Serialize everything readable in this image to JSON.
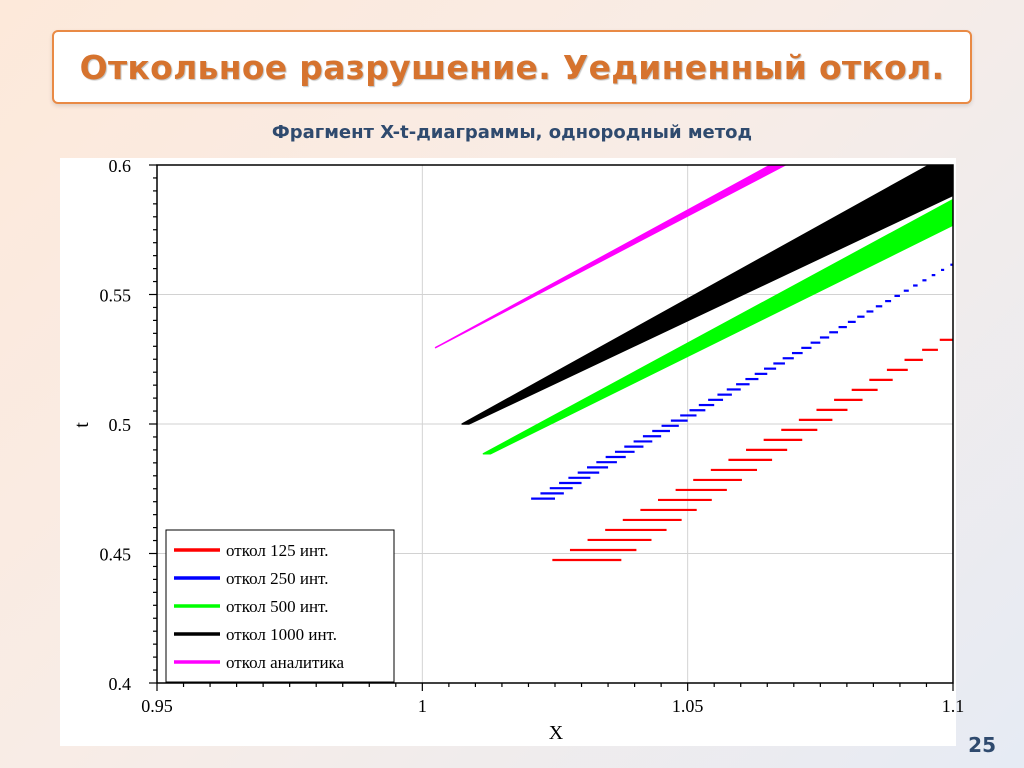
{
  "slide": {
    "title": "Откольное разрушение. Уединенный откол.",
    "subtitle": "Фрагмент X-t-диаграммы, однородный метод",
    "page_number": "25"
  },
  "chart_data": {
    "type": "line",
    "xlabel": "X",
    "ylabel": "t",
    "xlim": [
      0.95,
      1.1
    ],
    "ylim": [
      0.4,
      0.6
    ],
    "x_ticks": [
      "0.95",
      "1",
      "1.05",
      "1.1"
    ],
    "y_ticks": [
      "0.4",
      "0.45",
      "0.5",
      "0.55",
      "0.6"
    ],
    "grid": true,
    "legend_position": "bottom-left",
    "series": [
      {
        "name": "откол 125 инт.",
        "color": "#ff0000",
        "style": "steps",
        "steps": 23,
        "x_start": [
          1.0245,
          1.0975
        ],
        "x_end": [
          1.0375,
          1.1
        ],
        "t_range": [
          0.4475,
          0.5325
        ]
      },
      {
        "name": "откол 250 инт.",
        "color": "#0000ff",
        "style": "steps",
        "steps": 46,
        "x_start": [
          1.0205,
          1.0995
        ],
        "x_end": [
          1.025,
          1.1
        ],
        "t_range": [
          0.4712,
          0.5615
        ]
      },
      {
        "name": "откол 500 инт.",
        "color": "#00ff00",
        "style": "band",
        "x_start": [
          1.0115,
          1.1
        ],
        "x_end": [
          1.0128,
          1.1
        ],
        "t_start": [
          0.4885,
          0.5866
        ],
        "t_end": [
          0.4885,
          0.5768
        ]
      },
      {
        "name": "откол 1000 инт.",
        "color": "#000000",
        "style": "band",
        "x_start": [
          1.0075,
          1.1
        ],
        "x_end": [
          1.0088,
          1.1
        ],
        "t_start": [
          0.5,
          0.6051
        ],
        "t_end": [
          0.5,
          0.5883
        ]
      },
      {
        "name": "откол аналитика",
        "color": "#ff00ff",
        "style": "band",
        "x_start": [
          1.0025,
          1.0705
        ],
        "x_end": [
          1.0025,
          1.0735
        ],
        "t_start": [
          0.5295,
          0.6055
        ],
        "t_end": [
          0.5295,
          0.6055
        ]
      }
    ]
  }
}
